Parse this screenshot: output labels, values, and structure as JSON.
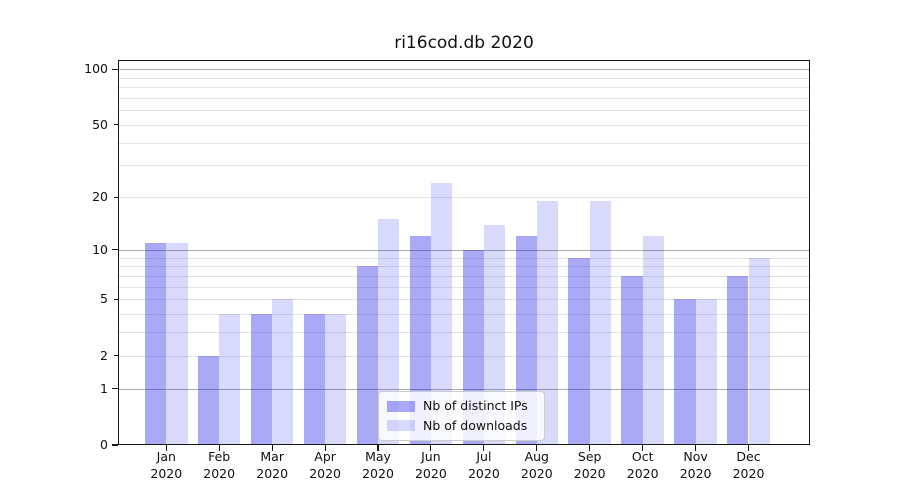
{
  "chart_data": {
    "type": "bar",
    "title": "ri16cod.db 2020",
    "categories": [
      "Jan",
      "Feb",
      "Mar",
      "Apr",
      "May",
      "Jun",
      "Jul",
      "Aug",
      "Sep",
      "Oct",
      "Nov",
      "Dec"
    ],
    "year_label": "2020",
    "series": [
      {
        "name": "Nb of distinct IPs",
        "color": "rgba(16,16,230,0.36)",
        "values": [
          11,
          2,
          4,
          4,
          8,
          12,
          10,
          12,
          9,
          7,
          5,
          7
        ]
      },
      {
        "name": "Nb of downloads",
        "color": "rgba(16,16,230,0.16)",
        "values": [
          11,
          4,
          5,
          4,
          15,
          24,
          14,
          19,
          19,
          12,
          5,
          9
        ]
      }
    ],
    "xlabel": "",
    "ylabel": "",
    "yscale": "log1p",
    "ylim": [
      0,
      112
    ],
    "y_tick_labels": [
      "100",
      "50",
      "20",
      "10",
      "5",
      "2",
      "1",
      "0"
    ],
    "y_tick_values": [
      100,
      50,
      20,
      10,
      5,
      2,
      1,
      0
    ],
    "y_major_tick_values": [
      0,
      1,
      10,
      100
    ],
    "y_major_grid_values": [
      1,
      10,
      100
    ],
    "y_minor_grid_values": [
      2,
      3,
      4,
      5,
      6,
      7,
      8,
      9,
      20,
      30,
      40,
      50,
      60,
      70,
      80,
      90
    ],
    "grid": "both",
    "legend_position": "lower center inside"
  },
  "colors": {
    "background": "#ffffff",
    "bar_distinct_ips": "rgba(16,16,230,0.36)",
    "bar_downloads": "rgba(16,16,230,0.16)",
    "grid_major": "#ababab",
    "grid_minor": "#e4e4e6",
    "axis_frame": "#15151a",
    "text": "#111111",
    "legend_border": "#cccccc",
    "legend_bg": "rgba(255,255,255,0.82)"
  }
}
